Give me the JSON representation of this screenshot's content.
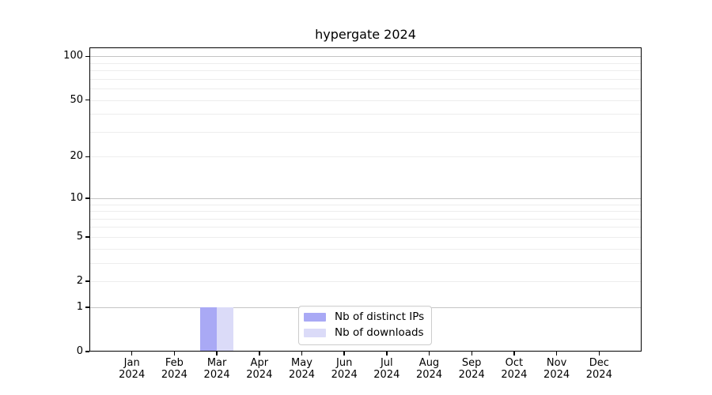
{
  "chart_data": {
    "type": "bar",
    "title": "hypergate 2024",
    "categories": [
      {
        "month": "Jan",
        "year": "2024"
      },
      {
        "month": "Feb",
        "year": "2024"
      },
      {
        "month": "Mar",
        "year": "2024"
      },
      {
        "month": "Apr",
        "year": "2024"
      },
      {
        "month": "May",
        "year": "2024"
      },
      {
        "month": "Jun",
        "year": "2024"
      },
      {
        "month": "Jul",
        "year": "2024"
      },
      {
        "month": "Aug",
        "year": "2024"
      },
      {
        "month": "Sep",
        "year": "2024"
      },
      {
        "month": "Oct",
        "year": "2024"
      },
      {
        "month": "Nov",
        "year": "2024"
      },
      {
        "month": "Dec",
        "year": "2024"
      }
    ],
    "series": [
      {
        "name": "Nb of distinct IPs",
        "color": "#a9a9f5",
        "values": [
          0,
          0,
          1,
          0,
          0,
          0,
          0,
          0,
          0,
          0,
          0,
          0
        ]
      },
      {
        "name": "Nb of downloads",
        "color": "#dbdbf8",
        "values": [
          0,
          0,
          1,
          0,
          0,
          0,
          0,
          0,
          0,
          0,
          0,
          0
        ]
      }
    ],
    "yscale": "log10(1+x)",
    "ylim": [
      0,
      115
    ],
    "yticks": [
      0,
      1,
      2,
      5,
      10,
      20,
      50,
      100
    ],
    "grid": {
      "major_values": [
        1,
        10,
        100
      ],
      "minor_values": [
        2,
        3,
        4,
        5,
        6,
        7,
        8,
        9,
        20,
        30,
        40,
        50,
        60,
        70,
        80,
        90
      ],
      "major_color": "#c4c4c4",
      "minor_color": "#ededed"
    },
    "legend_position": "lower center inside plot",
    "axis_color": "#000000"
  }
}
